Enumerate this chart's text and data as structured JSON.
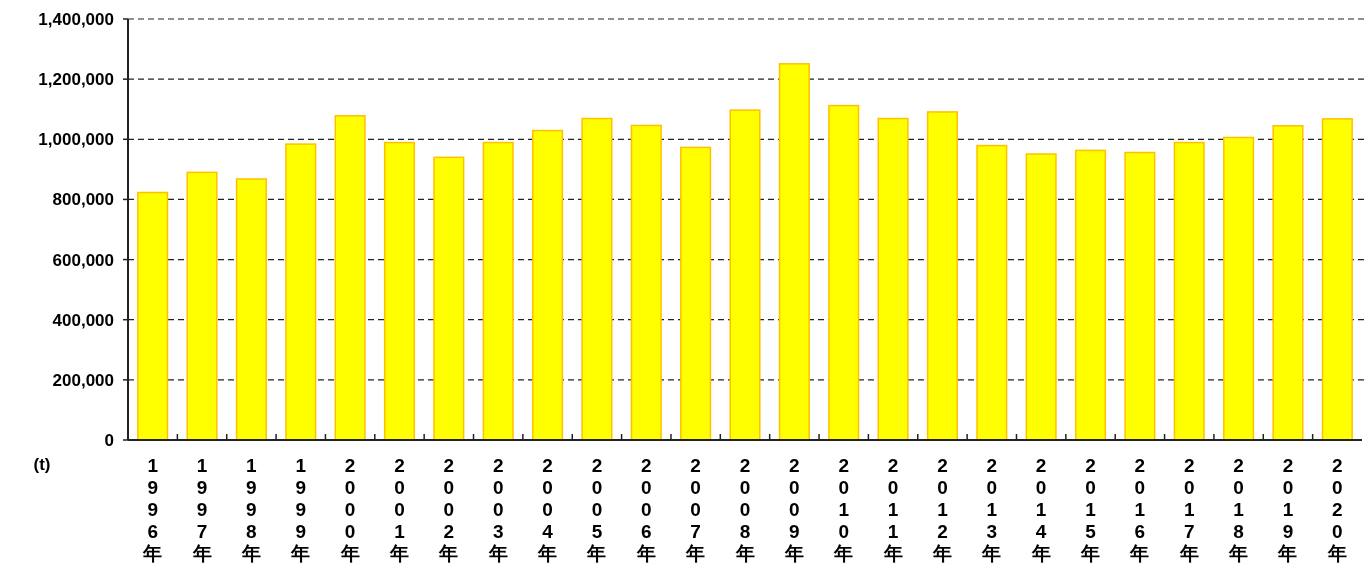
{
  "chart_data": {
    "type": "bar",
    "ylabel": "(t)",
    "categories": [
      "1996年",
      "1997年",
      "1998年",
      "1999年",
      "2000年",
      "2001年",
      "2002年",
      "2003年",
      "2004年",
      "2005年",
      "2006年",
      "2007年",
      "2008年",
      "2009年",
      "2010年",
      "2011年",
      "2012年",
      "2013年",
      "2014年",
      "2015年",
      "2016年",
      "2017年",
      "2018年",
      "2019年",
      "2020年"
    ],
    "values": [
      823000,
      890000,
      868000,
      984000,
      1078000,
      989000,
      940000,
      989000,
      1029000,
      1069000,
      1046000,
      973000,
      1097000,
      1251000,
      1112000,
      1069000,
      1091000,
      979000,
      951000,
      963000,
      956000,
      989000,
      1006000,
      1045000,
      1068000
    ],
    "color": "#ffff00",
    "ylim": [
      0,
      1400000
    ],
    "yticks": [
      0,
      {
        "value": 200000,
        "label": "200,000"
      },
      {
        "value": 400000,
        "label": "400,000"
      },
      {
        "value": 600000,
        "label": "600,000"
      },
      {
        "value": 800000,
        "label": "800,000"
      },
      {
        "value": 1000000,
        "label": "1,000,000"
      },
      {
        "value": 1200000,
        "label": "1,200,000"
      },
      {
        "value": 1400000,
        "label": "1,400,000"
      }
    ],
    "grid": "y"
  }
}
